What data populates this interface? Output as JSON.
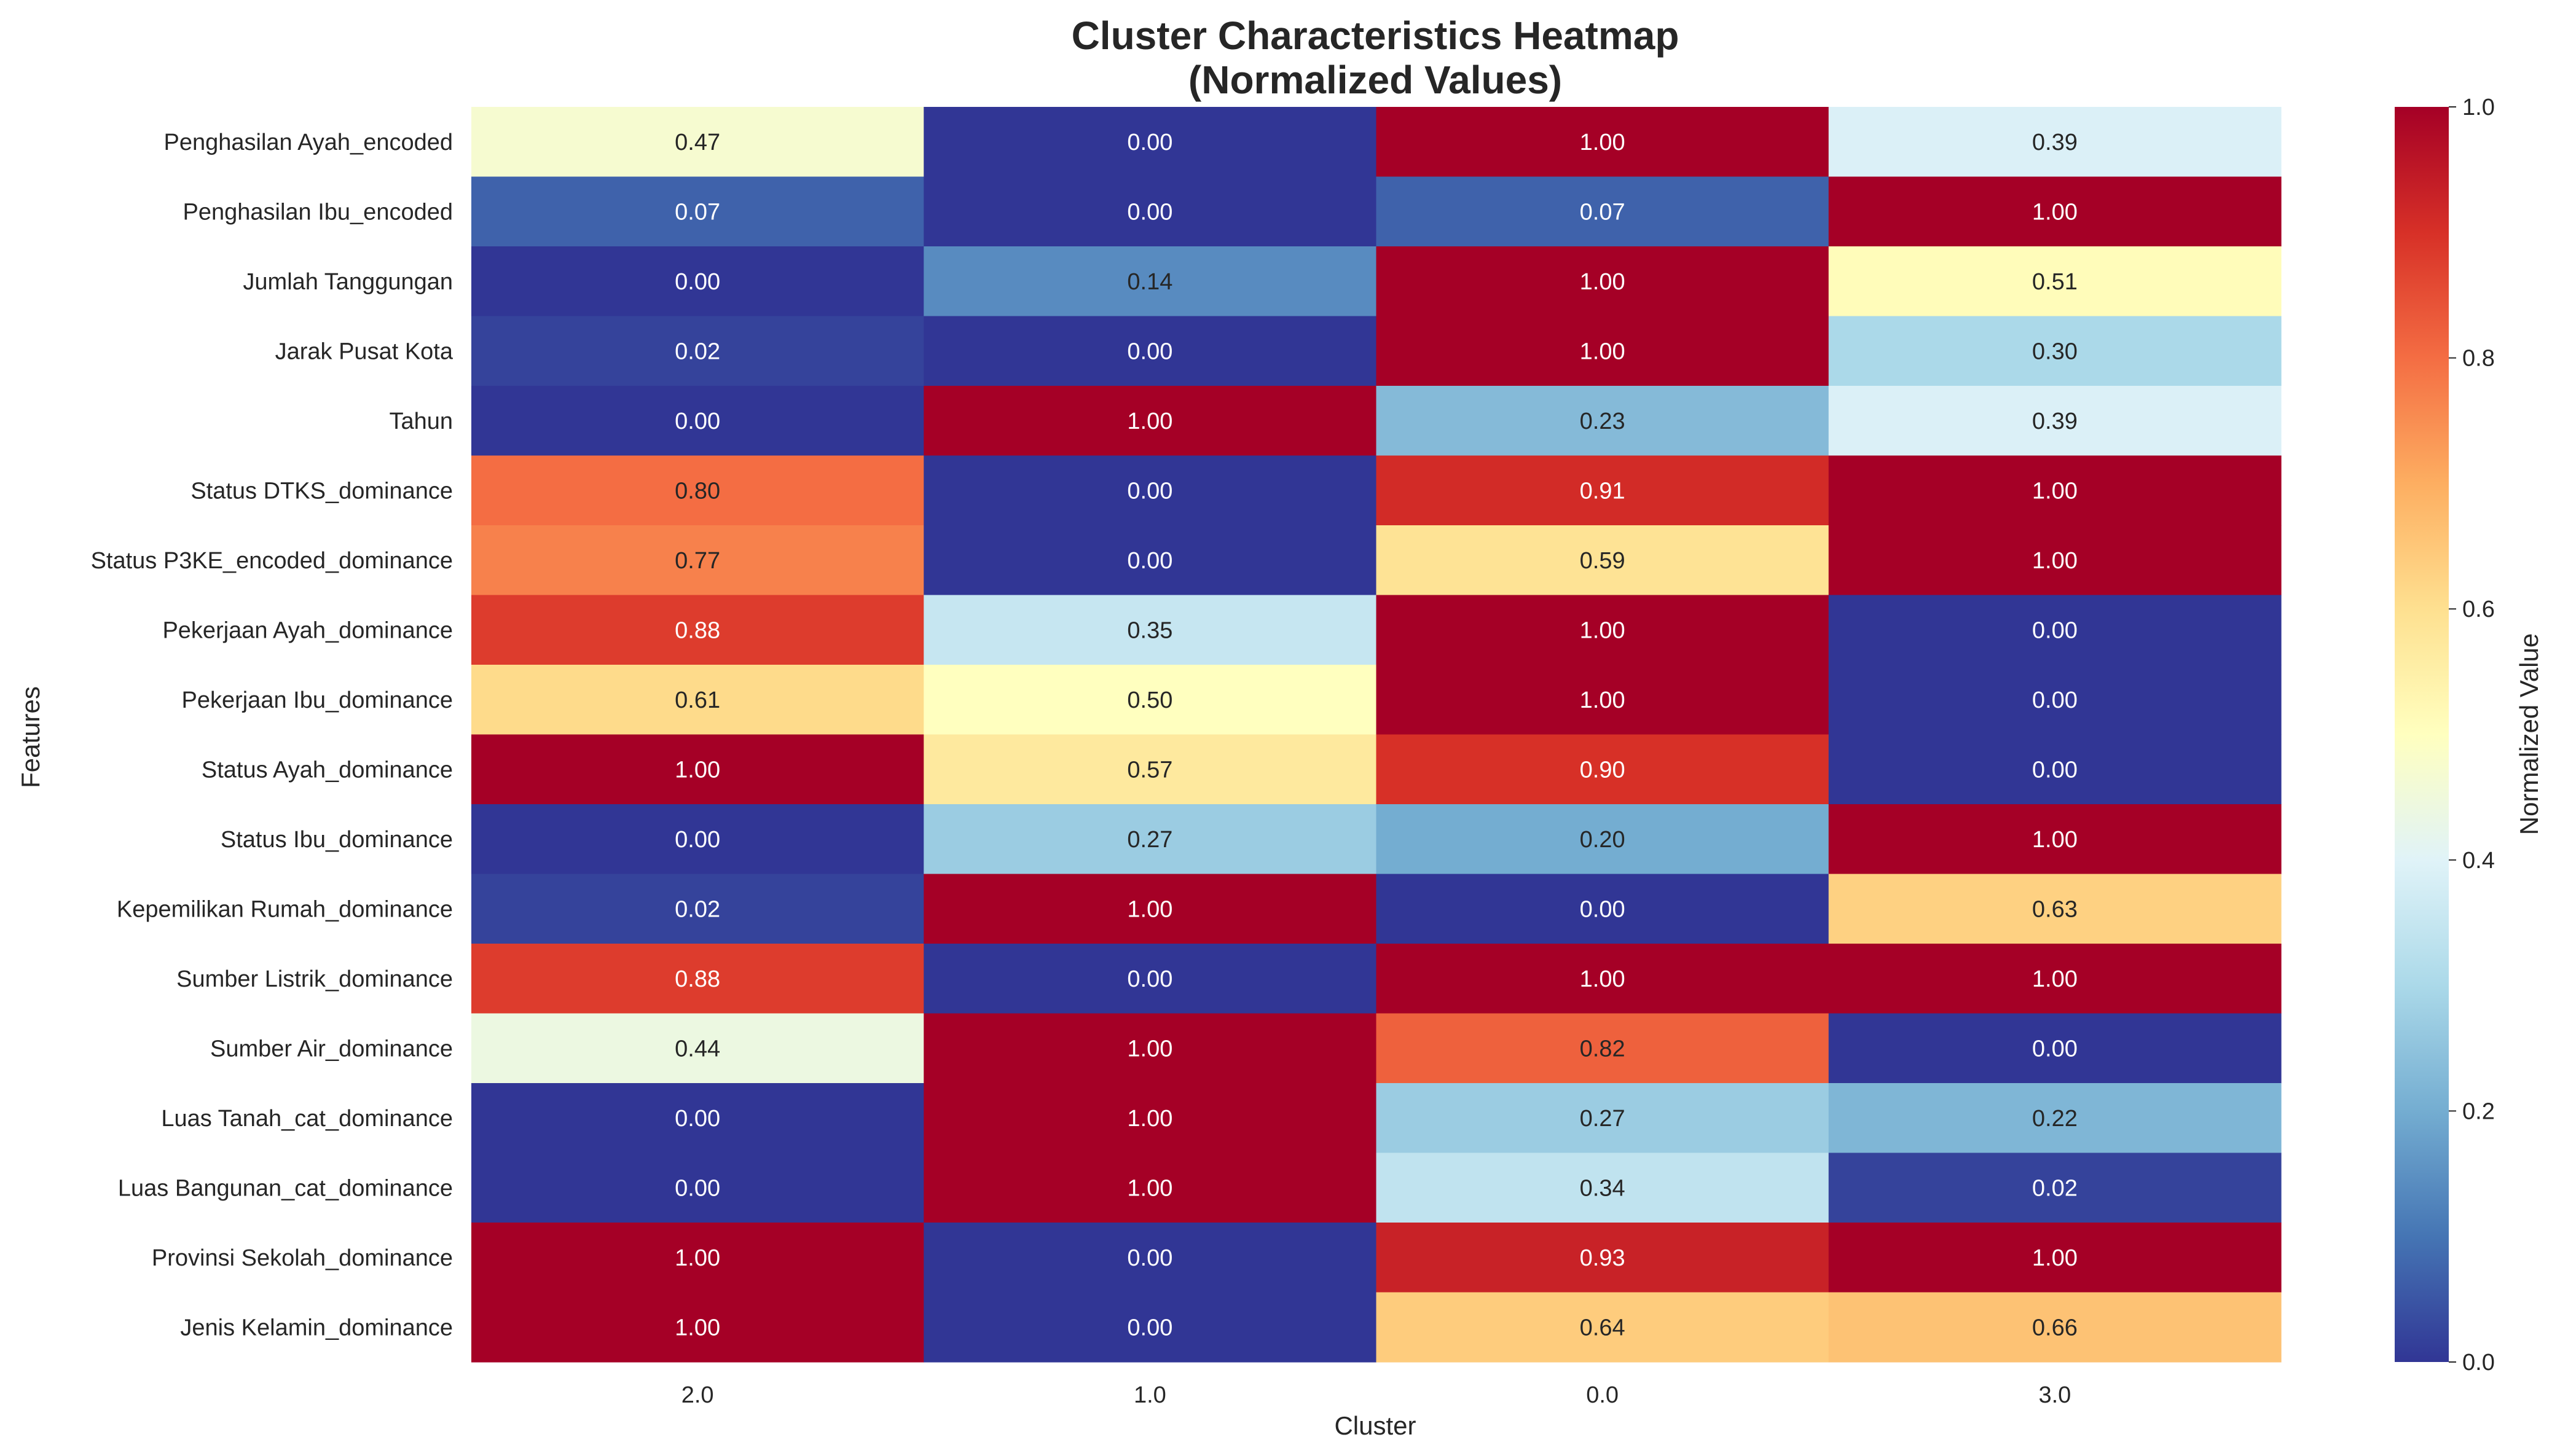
{
  "chart_data": {
    "type": "heatmap",
    "title": "Cluster Characteristics Heatmap",
    "subtitle": "(Normalized Values)",
    "xlabel": "Cluster",
    "ylabel": "Features",
    "colorbar_label": "Normalized Value",
    "colormap": "RdYlBu_r",
    "vmin": 0.0,
    "vmax": 1.0,
    "colorbar_ticks": [
      "0.0",
      "0.2",
      "0.4",
      "0.6",
      "0.8",
      "1.0"
    ],
    "columns": [
      "2.0",
      "1.0",
      "0.0",
      "3.0"
    ],
    "rows": [
      "Penghasilan Ayah_encoded",
      "Penghasilan Ibu_encoded",
      "Jumlah Tanggungan",
      "Jarak Pusat Kota",
      "Tahun",
      "Status DTKS_dominance",
      "Status P3KE_encoded_dominance",
      "Pekerjaan Ayah_dominance",
      "Pekerjaan Ibu_dominance",
      "Status Ayah_dominance",
      "Status Ibu_dominance",
      "Kepemilikan Rumah_dominance",
      "Sumber Listrik_dominance",
      "Sumber Air_dominance",
      "Luas Tanah_cat_dominance",
      "Luas Bangunan_cat_dominance",
      "Provinsi Sekolah_dominance",
      "Jenis Kelamin_dominance"
    ],
    "values": [
      [
        0.47,
        0.0,
        1.0,
        0.39
      ],
      [
        0.07,
        0.0,
        0.07,
        1.0
      ],
      [
        0.0,
        0.14,
        1.0,
        0.51
      ],
      [
        0.02,
        0.0,
        1.0,
        0.3
      ],
      [
        0.0,
        1.0,
        0.23,
        0.39
      ],
      [
        0.8,
        0.0,
        0.91,
        1.0
      ],
      [
        0.77,
        0.0,
        0.59,
        1.0
      ],
      [
        0.88,
        0.35,
        1.0,
        0.0
      ],
      [
        0.61,
        0.5,
        1.0,
        0.0
      ],
      [
        1.0,
        0.57,
        0.9,
        0.0
      ],
      [
        0.0,
        0.27,
        0.2,
        1.0
      ],
      [
        0.02,
        1.0,
        0.0,
        0.63
      ],
      [
        0.88,
        0.0,
        1.0,
        1.0
      ],
      [
        0.44,
        1.0,
        0.82,
        0.0
      ],
      [
        0.0,
        1.0,
        0.27,
        0.22
      ],
      [
        0.0,
        1.0,
        0.34,
        0.02
      ],
      [
        1.0,
        0.0,
        0.93,
        1.0
      ],
      [
        1.0,
        0.0,
        0.64,
        0.66
      ]
    ]
  }
}
